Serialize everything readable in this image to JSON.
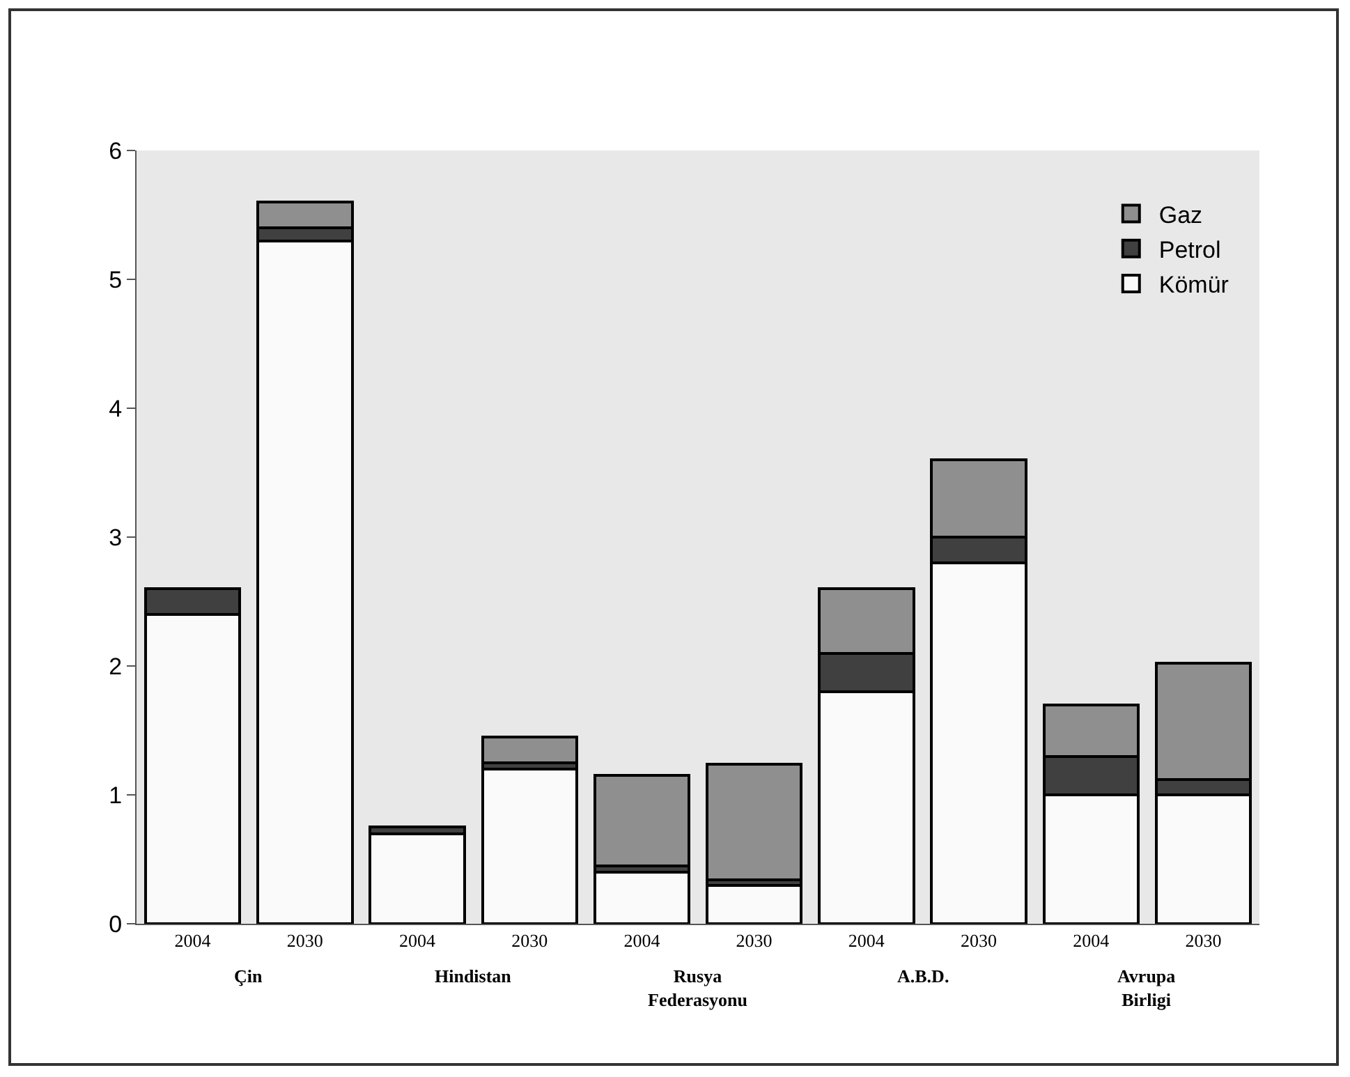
{
  "chart_data": {
    "type": "bar",
    "stacked": true,
    "categories": [
      "2004",
      "2030",
      "2004",
      "2030",
      "2004",
      "2030",
      "2004",
      "2030",
      "2004",
      "2030"
    ],
    "series": [
      {
        "name": "Kömür",
        "color": "#fafafa",
        "values": [
          2.4,
          5.3,
          0.7,
          1.2,
          0.4,
          0.3,
          1.8,
          2.8,
          1.0,
          1.0
        ]
      },
      {
        "name": "Petrol",
        "color": "#404040",
        "values": [
          0.2,
          0.1,
          0.05,
          0.05,
          0.05,
          0.04,
          0.3,
          0.2,
          0.3,
          0.12
        ]
      },
      {
        "name": "Gaz",
        "color": "#8f8f8f",
        "values": [
          null,
          0.2,
          null,
          0.2,
          0.7,
          0.9,
          0.5,
          0.6,
          0.4,
          0.9
        ]
      }
    ],
    "annotations": [
      "Çin",
      "Hindistan",
      "Rusya Federasyonu",
      "A.B.D.",
      "Avrupa Birligi"
    ],
    "ylim": [
      0,
      6
    ],
    "yticks": [
      0,
      1,
      2,
      3,
      4,
      5,
      6
    ],
    "grid": false,
    "legend": "top right"
  }
}
